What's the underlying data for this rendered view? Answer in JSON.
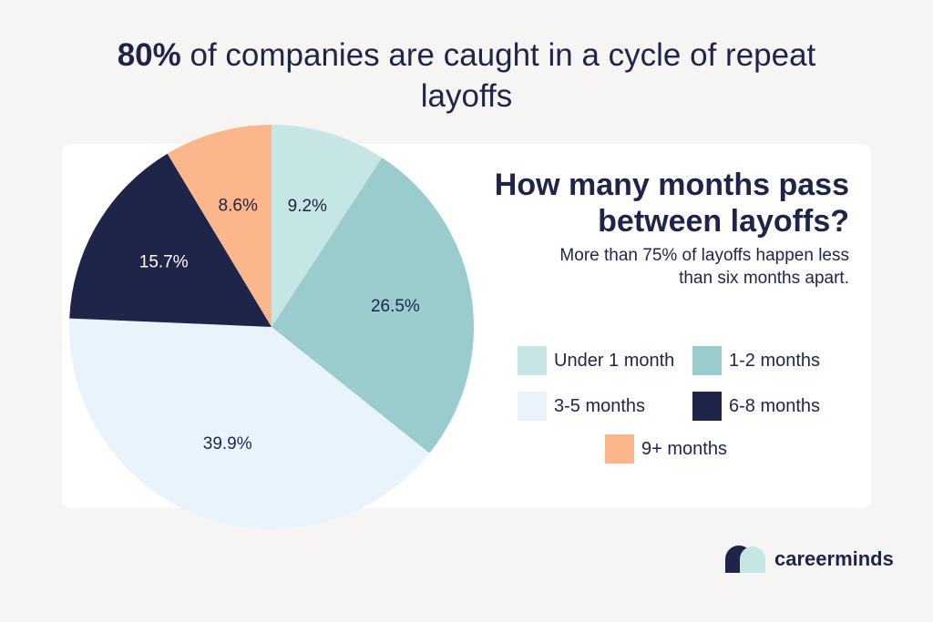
{
  "headline": {
    "bold": "80%",
    "line1_rest": " of companies are caught in a cycle of repeat",
    "line2": "layoffs"
  },
  "panel": {
    "title_line1": "How many months pass",
    "title_line2": "between layoffs?",
    "subtitle_line1": "More than 75% of layoffs happen less",
    "subtitle_line2": "than six months apart."
  },
  "chart_data": {
    "type": "pie",
    "title": "How many months pass between layoffs?",
    "subtitle": "More than 75% of layoffs happen less than six months apart.",
    "legend_position": "right",
    "slices": [
      {
        "label": "Under 1 month",
        "value": 9.2,
        "value_label": "9.2%",
        "color": "#c5e6e4",
        "text_color": "#1e2549"
      },
      {
        "label": "1-2 months",
        "value": 26.5,
        "value_label": "26.5%",
        "color": "#9accce",
        "text_color": "#1e2549"
      },
      {
        "label": "3-5 months",
        "value": 39.9,
        "value_label": "39.9%",
        "color": "#e9f3fc",
        "text_color": "#1e2549"
      },
      {
        "label": "6-8 months",
        "value": 15.7,
        "value_label": "15.7%",
        "color": "#1e2549",
        "text_color": "#ffffff"
      },
      {
        "label": "9+ months",
        "value": 8.6,
        "value_label": "8.6%",
        "color": "#fbb68b",
        "text_color": "#1e2549"
      }
    ]
  },
  "brand": {
    "name": "careerminds",
    "logo_colors": [
      "#1e2549",
      "#c5e6e4"
    ]
  }
}
